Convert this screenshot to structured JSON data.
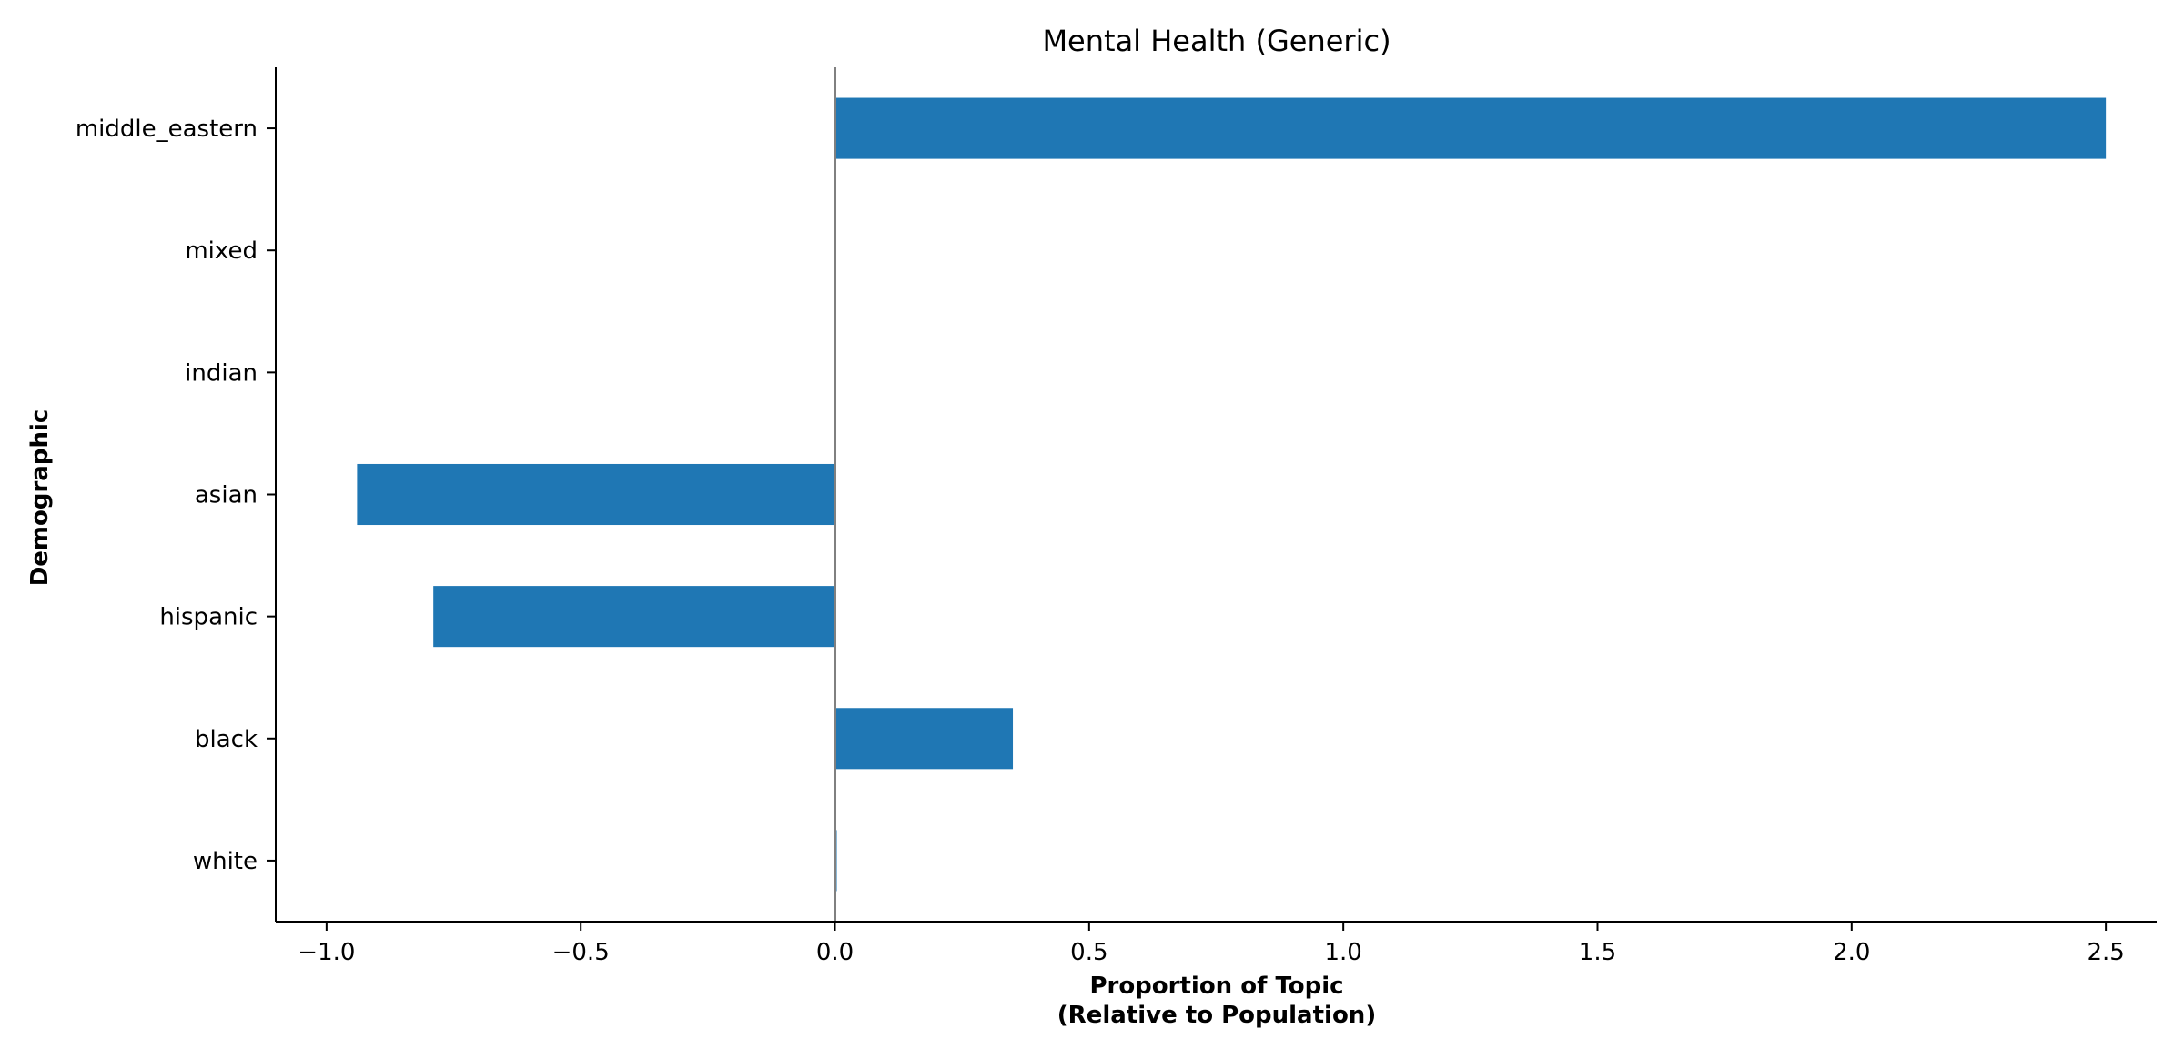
{
  "chart_data": {
    "type": "bar",
    "orientation": "horizontal",
    "title": "Mental Health (Generic)",
    "xlabel_line1": "Proportion of Topic",
    "xlabel_line2": "(Relative to Population)",
    "ylabel": "Demographic",
    "categories": [
      "white",
      "black",
      "hispanic",
      "asian",
      "indian",
      "mixed",
      "middle_eastern"
    ],
    "values": [
      0.003,
      0.35,
      -0.79,
      -0.94,
      0.0,
      0.0,
      2.5
    ],
    "xlim": [
      -1.1,
      2.6
    ],
    "xticks": [
      -1.0,
      -0.5,
      0.0,
      0.5,
      1.0,
      1.5,
      2.0,
      2.5
    ],
    "xtick_labels": [
      "−1.0",
      "−0.5",
      "0.0",
      "0.5",
      "1.0",
      "1.5",
      "2.0",
      "2.5"
    ],
    "reference_line_x": 0.0,
    "grid": false,
    "legend": "none",
    "bar_color": "#1f77b4",
    "reference_line_color": "#808080"
  }
}
